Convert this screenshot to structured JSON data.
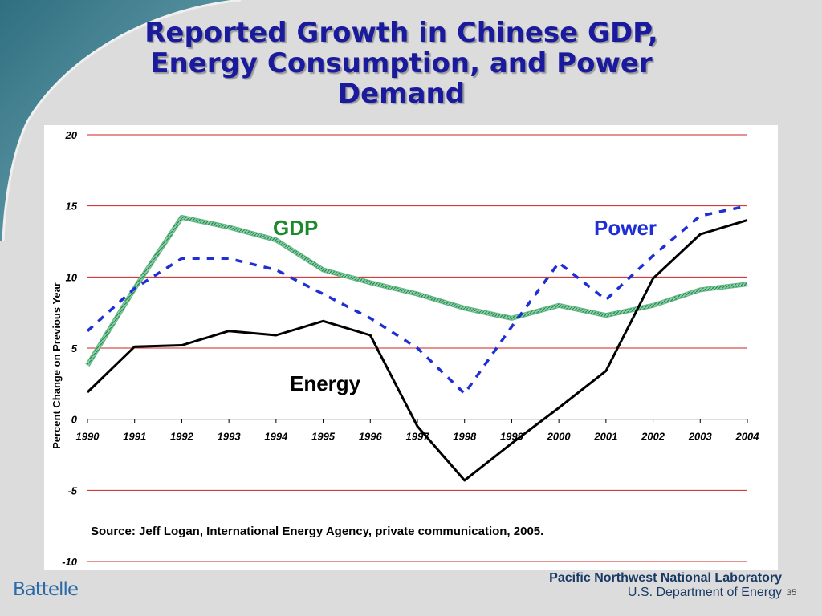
{
  "slide": {
    "title": "Reported Growth in Chinese GDP, Energy Consumption, and Power Demand",
    "source": "Source: Jeff Logan, International Energy Agency, private communication, 2005.",
    "footer_lab": "Pacific Northwest National Laboratory",
    "footer_doe": "U.S. Department of Energy",
    "page_number": "35",
    "logo_text": "Battelle"
  },
  "colors": {
    "title": "#1a1a9c",
    "gdp": "#3aa36a",
    "power": "#1f2fd6",
    "energy": "#000000",
    "gridline": "#cc2222",
    "gdp_label": "#1a8a2a",
    "power_label": "#1f2fd6"
  },
  "chart_data": {
    "type": "line",
    "title": "",
    "xlabel": "",
    "ylabel": "Percent Change on Previous Year",
    "x": [
      "1990",
      "1991",
      "1992",
      "1993",
      "1994",
      "1995",
      "1996",
      "1997",
      "1998",
      "1999",
      "2000",
      "2001",
      "2002",
      "2003",
      "2004"
    ],
    "ylim": [
      -10,
      20
    ],
    "yticks": [
      -10,
      -5,
      0,
      5,
      10,
      15,
      20
    ],
    "grid": true,
    "series": [
      {
        "name": "GDP",
        "style": "hatched-green",
        "values": [
          3.8,
          9.2,
          14.2,
          13.5,
          12.6,
          10.5,
          9.6,
          8.8,
          7.8,
          7.1,
          8.0,
          7.3,
          8.0,
          9.1,
          9.5
        ]
      },
      {
        "name": "Power",
        "style": "dashed-blue",
        "values": [
          6.2,
          9.2,
          11.3,
          11.3,
          10.5,
          8.8,
          7.1,
          5.0,
          1.8,
          6.5,
          11.0,
          8.4,
          11.5,
          14.3,
          15.0
        ]
      },
      {
        "name": "Energy",
        "style": "solid-black",
        "values": [
          1.9,
          5.1,
          5.2,
          6.2,
          5.9,
          6.9,
          5.9,
          -0.5,
          -4.3,
          -1.7,
          0.8,
          3.4,
          9.9,
          13.0,
          14.0
        ]
      }
    ]
  }
}
